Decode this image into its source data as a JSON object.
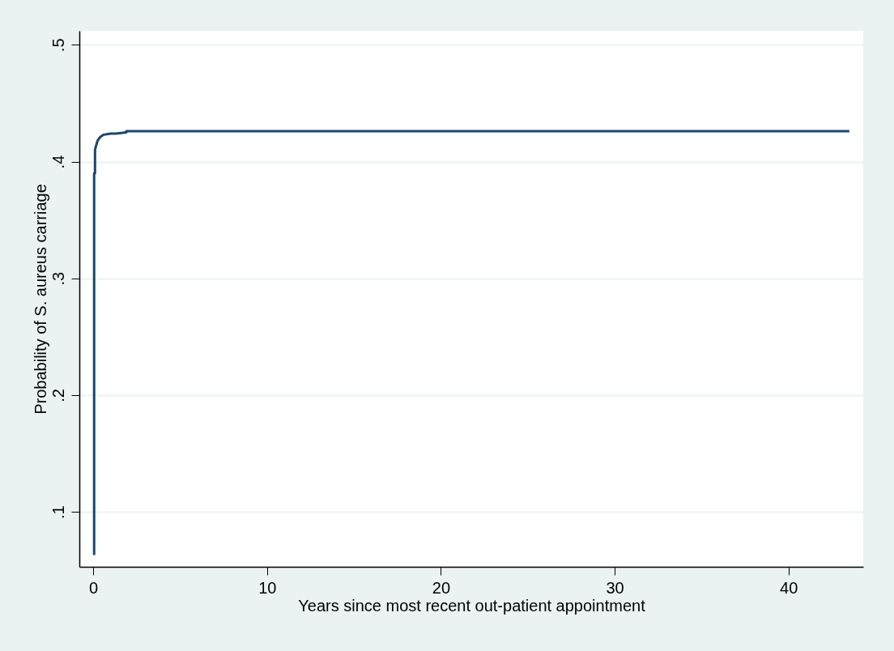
{
  "chart_data": {
    "type": "line",
    "xlabel": "Years since most recent out-patient appointment",
    "ylabel": "Probability of S. aureus carriage",
    "x": [
      0.05,
      0.05,
      0.1,
      0.1,
      0.15,
      0.25,
      0.4,
      0.6,
      1.0,
      1.3,
      1.9,
      1.9,
      43.5
    ],
    "series": [
      {
        "color": "#1a476f",
        "values": [
          0.063,
          0.39,
          0.39,
          0.41,
          0.413,
          0.418,
          0.421,
          0.423,
          0.424,
          0.424,
          0.425,
          0.426,
          0.426
        ]
      }
    ],
    "xlim": [
      -0.8,
      44.3
    ],
    "ylim": [
      0.053,
      0.512
    ],
    "xticks": [
      0,
      10,
      20,
      30,
      40
    ],
    "yticks": [
      {
        "value": 0.1,
        "label": ".1"
      },
      {
        "value": 0.2,
        "label": ".2"
      },
      {
        "value": 0.3,
        "label": ".3"
      },
      {
        "value": 0.4,
        "label": ".4"
      },
      {
        "value": 0.5,
        "label": ".5"
      }
    ],
    "grid": "y",
    "line_style": "solid"
  }
}
